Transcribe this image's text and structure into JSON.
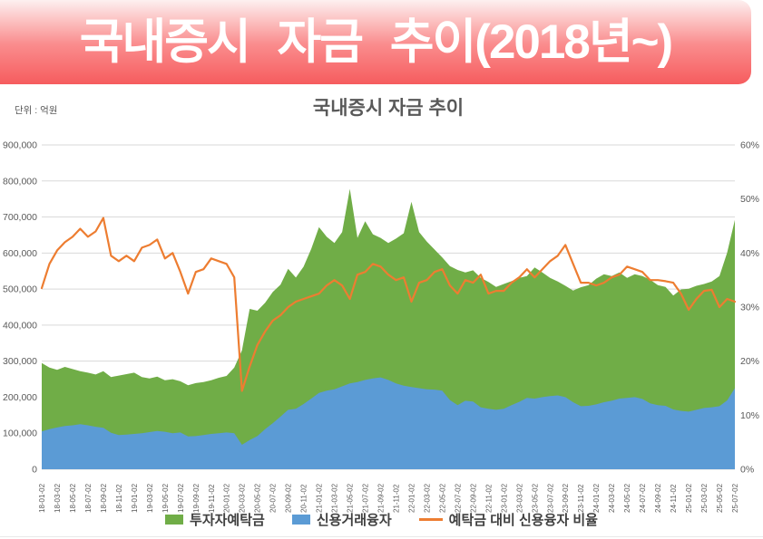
{
  "banner": {
    "title": "국내증시 자금 추이(2018년~)"
  },
  "chart": {
    "title": "국내증시 자금 추이",
    "unit_label": "단위 : 억원",
    "colors": {
      "deposits_green": "#70AD47",
      "credit_blue": "#5B9BD5",
      "ratio_orange": "#ED7D31",
      "gridline": "#D9D9D9",
      "axis_text": "#595959",
      "title_text": "#595959",
      "legend_text": "#404040",
      "banner_red_bottom": "#F65C5E",
      "banner_pink_top": "#FDF0F0"
    },
    "left_axis": {
      "ticks": [
        "900,000",
        "800,000",
        "700,000",
        "600,000",
        "500,000",
        "400,000",
        "300,000",
        "200,000",
        "100,000",
        "0"
      ]
    },
    "right_axis": {
      "ticks": [
        "60%",
        "50%",
        "40%",
        "30%",
        "20%",
        "10%",
        "0%"
      ]
    },
    "x_ticks": [
      "18-01-02",
      "18-03-02",
      "18-05-02",
      "18-07-02",
      "18-09-02",
      "18-11-02",
      "19-01-02",
      "19-03-02",
      "19-05-02",
      "19-07-02",
      "19-09-02",
      "19-11-02",
      "20-01-02",
      "20-03-02",
      "20-05-02",
      "20-07-02",
      "20-09-02",
      "20-11-02",
      "21-01-02",
      "21-03-02",
      "21-05-02",
      "21-07-02",
      "21-09-02",
      "21-11-02",
      "22-01-02",
      "22-03-02",
      "22-05-02",
      "22-07-02",
      "22-09-02",
      "22-11-02",
      "23-01-02",
      "23-03-02",
      "23-05-02",
      "23-07-02",
      "23-09-02",
      "23-11-02",
      "24-01-02",
      "24-03-02",
      "24-05-02",
      "24-07-02",
      "24-09-02",
      "24-11-02",
      "25-01-02",
      "25-03-02",
      "25-05-02",
      "25-07-02"
    ],
    "legend": [
      {
        "label": "투자자예탁금",
        "color": "#70AD47",
        "type": "area"
      },
      {
        "label": "신용거래융자",
        "color": "#5B9BD5",
        "type": "area"
      },
      {
        "label": "예탁금 대비 신용융자 비율",
        "color": "#ED7D31",
        "type": "line"
      }
    ]
  },
  "chart_data": {
    "type": "area+line",
    "title": "국내증시 자금 추이",
    "unit": "억원",
    "left_ylim": [
      0,
      900000
    ],
    "right_ylim": [
      0,
      60
    ],
    "grid": "horizontal",
    "legend_position": "bottom",
    "x_range": [
      "2018-01-02",
      "2025-07-02"
    ],
    "x_months": [
      "18-01",
      "18-02",
      "18-03",
      "18-04",
      "18-05",
      "18-06",
      "18-07",
      "18-08",
      "18-09",
      "18-10",
      "18-11",
      "18-12",
      "19-01",
      "19-02",
      "19-03",
      "19-04",
      "19-05",
      "19-06",
      "19-07",
      "19-08",
      "19-09",
      "19-10",
      "19-11",
      "19-12",
      "20-01",
      "20-02",
      "20-03",
      "20-04",
      "20-05",
      "20-06",
      "20-07",
      "20-08",
      "20-09",
      "20-10",
      "20-11",
      "20-12",
      "21-01",
      "21-02",
      "21-03",
      "21-04",
      "21-05",
      "21-06",
      "21-07",
      "21-08",
      "21-09",
      "21-10",
      "21-11",
      "21-12",
      "22-01",
      "22-02",
      "22-03",
      "22-04",
      "22-05",
      "22-06",
      "22-07",
      "22-08",
      "22-09",
      "22-10",
      "22-11",
      "22-12",
      "23-01",
      "23-02",
      "23-03",
      "23-04",
      "23-05",
      "23-06",
      "23-07",
      "23-08",
      "23-09",
      "23-10",
      "23-11",
      "23-12",
      "24-01",
      "24-02",
      "24-03",
      "24-04",
      "24-05",
      "24-06",
      "24-07",
      "24-08",
      "24-09",
      "24-10",
      "24-11",
      "24-12",
      "25-01",
      "25-02",
      "25-03",
      "25-04",
      "25-05",
      "25-06",
      "25-07"
    ],
    "series": [
      {
        "name": "투자자예탁금",
        "type": "area",
        "axis": "left",
        "color": "#70AD47",
        "values": [
          295000,
          282000,
          276000,
          284000,
          278000,
          272000,
          268000,
          263000,
          272000,
          256000,
          260000,
          264000,
          268000,
          256000,
          252000,
          257000,
          247000,
          250000,
          244000,
          233000,
          239000,
          242000,
          247000,
          254000,
          259000,
          282000,
          330000,
          445000,
          440000,
          462000,
          492000,
          512000,
          556000,
          532000,
          562000,
          612000,
          672000,
          645000,
          628000,
          658000,
          778000,
          642000,
          688000,
          652000,
          642000,
          628000,
          640000,
          655000,
          742000,
          658000,
          632000,
          610000,
          588000,
          564000,
          553000,
          546000,
          552000,
          531000,
          520000,
          506000,
          514000,
          522000,
          531000,
          536000,
          560000,
          546000,
          531000,
          521000,
          509000,
          496000,
          505000,
          511000,
          529000,
          541000,
          536000,
          546000,
          531000,
          541000,
          536000,
          526000,
          511000,
          506000,
          482000,
          499000,
          501000,
          509000,
          514000,
          521000,
          536000,
          601000,
          692000
        ]
      },
      {
        "name": "신용거래융자",
        "type": "area",
        "axis": "left",
        "color": "#5B9BD5",
        "values": [
          105000,
          111000,
          116000,
          120000,
          122000,
          125000,
          122000,
          118000,
          115000,
          101000,
          95000,
          96000,
          98000,
          100000,
          103000,
          106000,
          104000,
          100000,
          102000,
          91000,
          92000,
          95000,
          98000,
          100000,
          102000,
          100000,
          68000,
          81000,
          92000,
          111000,
          128000,
          146000,
          165000,
          168000,
          181000,
          196000,
          212000,
          218000,
          222000,
          230000,
          238000,
          242000,
          248000,
          252000,
          255000,
          248000,
          238000,
          232000,
          228000,
          225000,
          222000,
          221000,
          218000,
          192000,
          178000,
          190000,
          188000,
          172000,
          168000,
          165000,
          168000,
          178000,
          187000,
          198000,
          196000,
          200000,
          203000,
          205000,
          200000,
          186000,
          175000,
          176000,
          180000,
          186000,
          190000,
          196000,
          198000,
          200000,
          195000,
          183000,
          178000,
          176000,
          166000,
          162000,
          160000,
          165000,
          170000,
          172000,
          175000,
          191000,
          225000
        ]
      },
      {
        "name": "예탁금 대비 신용융자 비율",
        "type": "line",
        "axis": "right",
        "color": "#ED7D31",
        "values": [
          33.5,
          38.0,
          40.5,
          42.0,
          43.0,
          44.5,
          43.0,
          44.0,
          46.5,
          39.5,
          38.5,
          39.5,
          38.5,
          41.0,
          41.5,
          42.5,
          39.0,
          40.0,
          36.5,
          32.5,
          36.5,
          37.0,
          39.0,
          38.5,
          38.0,
          35.5,
          14.5,
          19.0,
          23.0,
          25.5,
          27.5,
          28.5,
          30.0,
          31.0,
          31.5,
          32.0,
          32.5,
          34.0,
          35.0,
          34.0,
          31.5,
          36.0,
          36.5,
          38.0,
          37.5,
          36.0,
          35.0,
          35.5,
          31.0,
          34.5,
          35.0,
          36.5,
          37.0,
          34.0,
          32.5,
          35.0,
          34.5,
          36.0,
          32.5,
          33.0,
          33.0,
          34.5,
          35.5,
          37.0,
          35.5,
          37.0,
          38.5,
          39.5,
          41.5,
          38.0,
          34.5,
          34.5,
          34.0,
          34.5,
          35.5,
          36.0,
          37.5,
          37.0,
          36.5,
          35.0,
          35.0,
          34.8,
          34.5,
          32.5,
          29.5,
          31.5,
          33.0,
          33.2,
          30.0,
          31.5,
          31.0
        ]
      }
    ]
  }
}
